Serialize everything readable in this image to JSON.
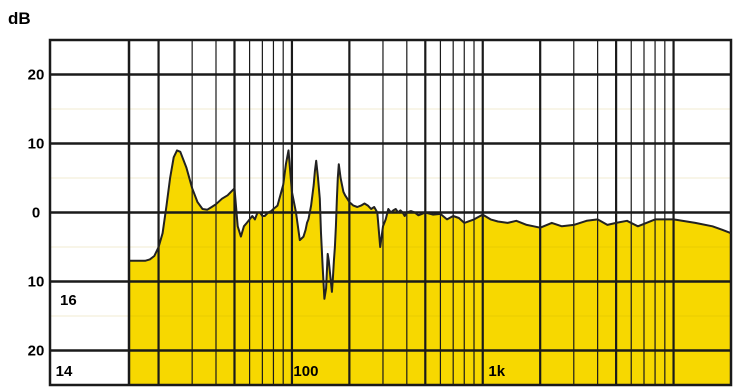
{
  "chart_data": {
    "type": "area",
    "title": "",
    "xlabel": "",
    "ylabel": "dB",
    "ylim": [
      -25,
      25
    ],
    "xlim": [
      14,
      20000
    ],
    "x_scale": "log",
    "y_tick_labels": [
      {
        "value": 20,
        "label": "20"
      },
      {
        "value": 10,
        "label": "10"
      },
      {
        "value": 0,
        "label": "0"
      },
      {
        "value": -10,
        "label": "10"
      },
      {
        "value": -20,
        "label": "20"
      }
    ],
    "x_tick_labels": [
      {
        "value": 14,
        "label": "14"
      },
      {
        "value": 100,
        "label": "100"
      },
      {
        "value": 1000,
        "label": "1k"
      }
    ],
    "corner_label": "16",
    "colors": {
      "fill": "#f7d800",
      "line": "#222222",
      "grid": "#1a1a1a",
      "background": "#ffffff"
    },
    "grid": true,
    "series": [
      {
        "x": [
          14,
          16,
          17,
          18,
          19,
          20,
          21,
          22,
          23,
          24,
          25,
          26,
          28,
          30,
          32,
          34,
          36,
          38,
          40,
          43,
          46,
          50,
          52,
          54,
          56,
          58,
          60,
          62,
          64,
          66,
          68,
          70,
          72,
          75,
          78,
          80,
          84,
          88,
          90,
          93,
          96,
          100,
          105,
          110,
          115,
          118,
          120,
          122,
          124,
          126,
          128,
          130,
          132,
          134,
          137,
          140,
          142,
          145,
          148,
          151,
          154,
          156,
          158,
          160,
          162,
          164,
          166,
          168,
          170,
          172,
          174,
          176,
          178,
          180,
          183,
          186,
          190,
          195,
          200,
          210,
          220,
          230,
          240,
          250,
          260,
          270,
          280,
          290,
          300,
          310,
          320,
          330,
          340,
          350,
          360,
          370,
          380,
          390,
          400,
          420,
          440,
          460,
          480,
          500,
          550,
          600,
          650,
          700,
          750,
          800,
          900,
          1000,
          1100,
          1200,
          1350,
          1500,
          1700,
          1850,
          2000,
          2300,
          2600,
          3000,
          3500,
          4000,
          4500,
          5000,
          5700,
          6500,
          8000,
          10000,
          13000,
          16000,
          18000,
          20000
        ],
        "values": [
          -7.0,
          -7.0,
          -7.0,
          -6.8,
          -6.3,
          -5.0,
          -3.0,
          1.0,
          5.0,
          8.0,
          9.0,
          8.8,
          6.5,
          3.5,
          1.5,
          0.5,
          0.4,
          0.8,
          1.2,
          2.0,
          2.5,
          3.5,
          -2.0,
          -3.5,
          -2.0,
          -1.5,
          -1.0,
          -0.5,
          -1.0,
          0.0,
          0.0,
          -0.5,
          -0.5,
          0.0,
          0.2,
          0.5,
          1.0,
          3.0,
          4.0,
          7.0,
          9.0,
          3.0,
          0.0,
          -4.0,
          -3.5,
          -2.5,
          -1.5,
          -1.0,
          0.0,
          1.0,
          2.5,
          4.0,
          6.0,
          7.5,
          5.0,
          2.0,
          -3.0,
          -8.0,
          -12.5,
          -11.0,
          -6.0,
          -7.0,
          -8.5,
          -10.0,
          -11.5,
          -9.5,
          -7.0,
          -5.0,
          -2.0,
          2.0,
          5.0,
          7.0,
          6.0,
          5.0,
          4.0,
          3.0,
          2.5,
          2.0,
          1.5,
          1.0,
          0.8,
          1.0,
          1.3,
          1.0,
          0.5,
          0.8,
          0.0,
          -5.0,
          -2.0,
          -1.0,
          0.5,
          0.0,
          0.3,
          0.5,
          0.0,
          0.3,
          0.0,
          -0.5,
          0.0,
          0.2,
          0.0,
          -0.4,
          -0.2,
          0.0,
          -0.3,
          -0.2,
          -1.0,
          -0.5,
          -0.8,
          -1.5,
          -1.0,
          -0.3,
          -1.0,
          -1.3,
          -1.5,
          -1.2,
          -1.8,
          -2.0,
          -2.2,
          -1.5,
          -2.0,
          -1.8,
          -1.2,
          -1.0,
          -1.8,
          -1.5,
          -1.2,
          -2.0,
          -1.0,
          -1.0,
          -1.5,
          -2.0,
          -2.5,
          -3.0
        ]
      }
    ]
  }
}
